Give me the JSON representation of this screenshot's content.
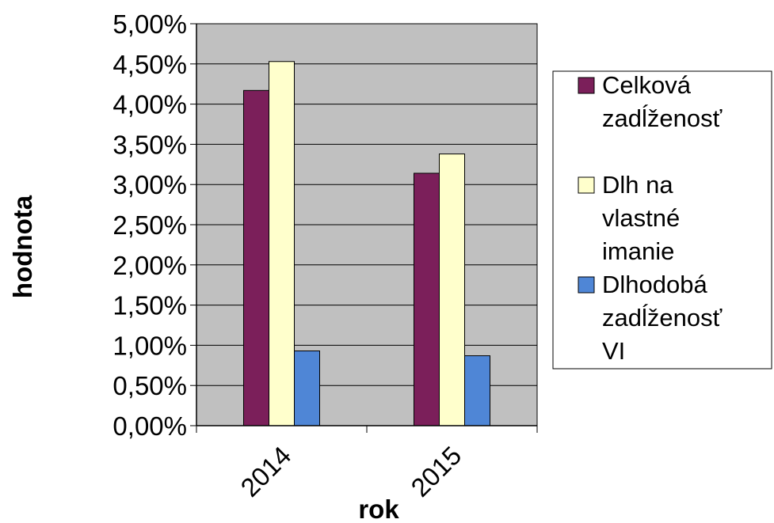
{
  "chart_data": {
    "type": "bar",
    "categories": [
      "2014",
      "2015"
    ],
    "series": [
      {
        "name": "Celková zadĺženosť",
        "values": [
          4.17,
          3.14
        ],
        "color": "#7b1f5a"
      },
      {
        "name": "Dlh na vlastné imanie",
        "values": [
          4.53,
          3.38
        ],
        "color": "#ffffcc"
      },
      {
        "name": "Dlhodobá zadĺženosť VI",
        "values": [
          0.93,
          0.87
        ],
        "color": "#4f86d6"
      }
    ],
    "legend_lines": [
      [
        "Celková",
        "zadĺženosť"
      ],
      [
        "Dlh na",
        "vlastné",
        "imanie"
      ],
      [
        "Dlhodobá",
        "zadĺženosť",
        "VI"
      ]
    ],
    "xlabel": "rok",
    "ylabel": "hodnota",
    "ylim": [
      0,
      5
    ],
    "ytick_step": 0.5,
    "ytick_labels": [
      "0,00%",
      "0,50%",
      "1,00%",
      "1,50%",
      "2,00%",
      "2,50%",
      "3,00%",
      "3,50%",
      "4,00%",
      "4,50%",
      "5,00%"
    ],
    "plot_background": "#c0c0c0",
    "grid": true,
    "legend_position": "right"
  }
}
